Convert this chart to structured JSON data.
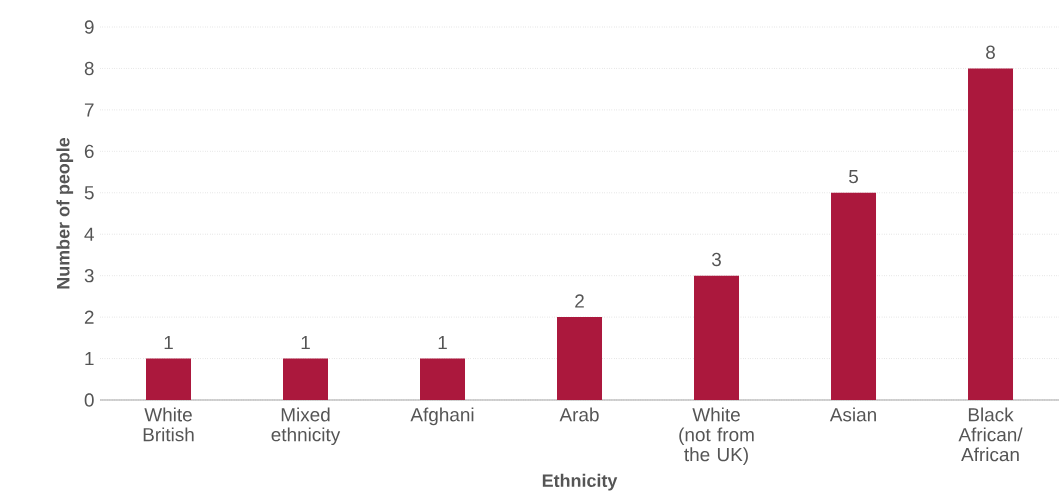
{
  "chart_data": {
    "type": "bar",
    "xlabel": "Ethnicity",
    "ylabel": "Number of people",
    "categories": [
      "White British",
      "Mixed ethnicity",
      "Afghani",
      "Arab",
      "White (not from the UK)",
      "Asian",
      "Black African/ African"
    ],
    "values": [
      1,
      1,
      1,
      2,
      3,
      5,
      8
    ],
    "color": "#ab183d",
    "ylim": [
      0,
      9
    ],
    "yticks": [
      0,
      1,
      2,
      3,
      4,
      5,
      6,
      7,
      8,
      9
    ],
    "grid": "y",
    "data_labels": true
  }
}
